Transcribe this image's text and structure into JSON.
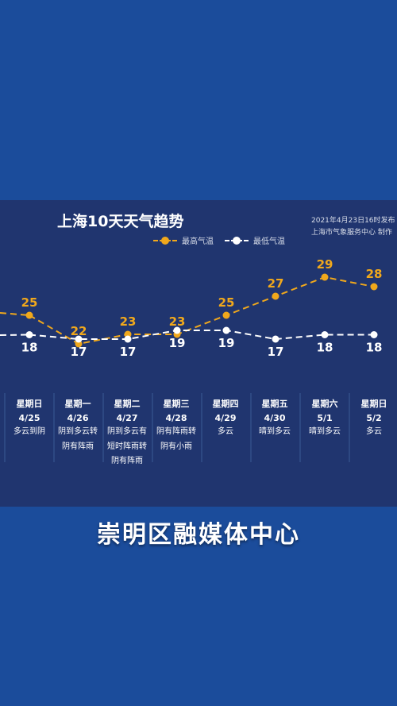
{
  "header": {
    "title": "上海10天天气趋势",
    "published": "2021年4月23日16时发布",
    "producer": "上海市气象服务中心 制作"
  },
  "legend": {
    "high_label": "最高气温",
    "low_label": "最低气温"
  },
  "colors": {
    "background": "#1b4c9b",
    "panel": "#20356f",
    "high": "#f0a81c",
    "low": "#ffffff"
  },
  "chart_data": {
    "type": "line",
    "title": "上海10天天气趋势",
    "categories": [
      "4/25",
      "4/26",
      "4/27",
      "4/28",
      "4/29",
      "4/30",
      "5/1",
      "5/2"
    ],
    "series": [
      {
        "name": "最高气温",
        "values": [
          25,
          22,
          23,
          23,
          25,
          27,
          29,
          28
        ]
      },
      {
        "name": "最低气温",
        "values": [
          18,
          17,
          17,
          19,
          19,
          17,
          18,
          18
        ]
      }
    ],
    "legend_position": "top-center",
    "grid": false
  },
  "days": [
    {
      "weekday": "星期日",
      "date": "4/25",
      "condition": [
        "多云到阴"
      ]
    },
    {
      "weekday": "星期一",
      "date": "4/26",
      "condition": [
        "阴到多云转",
        "阴有阵雨"
      ]
    },
    {
      "weekday": "星期二",
      "date": "4/27",
      "condition": [
        "阴到多云有",
        "短时阵雨转",
        "阴有阵雨"
      ]
    },
    {
      "weekday": "星期三",
      "date": "4/28",
      "condition": [
        "阴有阵雨转",
        "阴有小雨"
      ]
    },
    {
      "weekday": "星期四",
      "date": "4/29",
      "condition": [
        "多云"
      ]
    },
    {
      "weekday": "星期五",
      "date": "4/30",
      "condition": [
        "晴到多云"
      ]
    },
    {
      "weekday": "星期六",
      "date": "5/1",
      "condition": [
        "晴到多云"
      ]
    },
    {
      "weekday": "星期日",
      "date": "5/2",
      "condition": [
        "多云"
      ]
    }
  ],
  "footer": {
    "text": "崇明区融媒体中心"
  }
}
